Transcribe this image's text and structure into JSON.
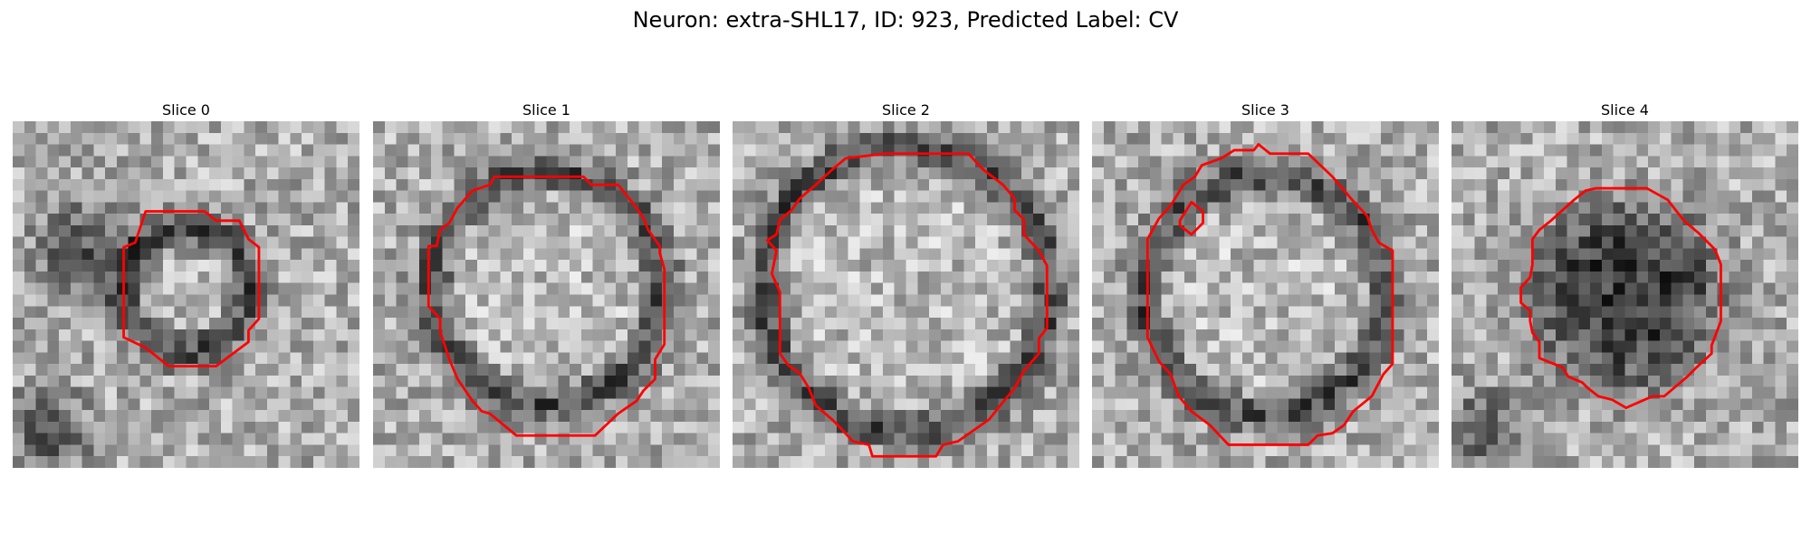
{
  "figure": {
    "title": "Neuron: extra-SHL17, ID: 923, Predicted Label: CV"
  },
  "colors": {
    "contour": "#ff0000",
    "background": "#ffffff"
  },
  "grid_size": 30,
  "panels": [
    {
      "title": "Slice 0",
      "blob": {
        "cx": 15.0,
        "cy": 14.5,
        "r": 5.4,
        "mode": "ring",
        "inner": "light"
      },
      "dark_patches": [
        [
          6,
          11,
          4
        ],
        [
          3,
          27,
          3.5
        ]
      ],
      "contour": [
        [
          11.5,
          7.8
        ],
        [
          13.2,
          7.8
        ],
        [
          14.6,
          7.8
        ],
        [
          16.6,
          7.8
        ],
        [
          17.6,
          8.6
        ],
        [
          19.6,
          8.6
        ],
        [
          20.4,
          10.2
        ],
        [
          21.3,
          10.9
        ],
        [
          21.3,
          17.1
        ],
        [
          20.4,
          18.1
        ],
        [
          20.4,
          19.1
        ],
        [
          17.6,
          21.2
        ],
        [
          13.5,
          21.2
        ],
        [
          11.5,
          19.6
        ],
        [
          9.6,
          18.7
        ],
        [
          9.6,
          10.9
        ],
        [
          10.6,
          10.5
        ]
      ]
    },
    {
      "title": "Slice 1",
      "blob": {
        "cx": 15.0,
        "cy": 14.5,
        "r": 10.0,
        "mode": "ring",
        "inner": "light"
      },
      "dark_patches": [],
      "contour": [
        [
          10.5,
          4.8
        ],
        [
          14.0,
          4.8
        ],
        [
          18.2,
          4.8
        ],
        [
          18.9,
          5.5
        ],
        [
          21.2,
          5.5
        ],
        [
          22.8,
          7.5
        ],
        [
          23.4,
          8.4
        ],
        [
          23.8,
          9.4
        ],
        [
          24.8,
          10.8
        ],
        [
          24.8,
          11.4
        ],
        [
          25.2,
          12.8
        ],
        [
          25.2,
          19.3
        ],
        [
          24.4,
          20.6
        ],
        [
          24.4,
          22.3
        ],
        [
          23.4,
          23.3
        ],
        [
          22.8,
          24.2
        ],
        [
          21.2,
          25.3
        ],
        [
          19.2,
          27.2
        ],
        [
          12.4,
          27.2
        ],
        [
          10.1,
          25.3
        ],
        [
          9.4,
          25.1
        ],
        [
          8.6,
          24.2
        ],
        [
          7.3,
          22.3
        ],
        [
          6.6,
          20.6
        ],
        [
          5.8,
          18.2
        ],
        [
          5.8,
          17.1
        ],
        [
          4.8,
          16.0
        ],
        [
          4.8,
          10.8
        ],
        [
          5.5,
          10.8
        ],
        [
          5.8,
          9.4
        ],
        [
          6.6,
          8.8
        ],
        [
          7.3,
          7.5
        ],
        [
          8.6,
          6.0
        ],
        [
          10.1,
          5.5
        ]
      ]
    },
    {
      "title": "Slice 2",
      "blob": {
        "cx": 15.0,
        "cy": 14.5,
        "r": 12.4,
        "mode": "ring",
        "inner": "light"
      },
      "dark_patches": [],
      "contour": [
        [
          9.8,
          3.2
        ],
        [
          13.2,
          2.8
        ],
        [
          17.6,
          2.8
        ],
        [
          20.4,
          2.8
        ],
        [
          21.7,
          4.2
        ],
        [
          23.4,
          5.5
        ],
        [
          24.4,
          6.7
        ],
        [
          24.4,
          7.7
        ],
        [
          25.2,
          8.5
        ],
        [
          25.2,
          9.8
        ],
        [
          26.5,
          11.2
        ],
        [
          27.2,
          12.5
        ],
        [
          27.2,
          17.9
        ],
        [
          26.5,
          18.8
        ],
        [
          26.5,
          20.1
        ],
        [
          25.2,
          21.6
        ],
        [
          24.4,
          23.1
        ],
        [
          23.4,
          24.3
        ],
        [
          22.2,
          25.8
        ],
        [
          19.5,
          27.7
        ],
        [
          18.2,
          28.0
        ],
        [
          17.6,
          29.0
        ],
        [
          12.1,
          29.0
        ],
        [
          11.8,
          28.0
        ],
        [
          10.4,
          27.7
        ],
        [
          9.3,
          26.5
        ],
        [
          8.6,
          25.8
        ],
        [
          7.2,
          24.6
        ],
        [
          6.6,
          23.1
        ],
        [
          5.8,
          21.8
        ],
        [
          4.8,
          21.1
        ],
        [
          4.1,
          20.1
        ],
        [
          4.1,
          14.8
        ],
        [
          3.4,
          13.2
        ],
        [
          3.8,
          11.2
        ],
        [
          3.0,
          10.3
        ],
        [
          3.8,
          9.8
        ],
        [
          4.1,
          8.5
        ],
        [
          5.1,
          7.7
        ],
        [
          5.8,
          6.7
        ],
        [
          7.2,
          5.5
        ],
        [
          8.6,
          4.2
        ]
      ]
    },
    {
      "title": "Slice 3",
      "blob": {
        "cx": 15.0,
        "cy": 15.0,
        "r": 10.4,
        "mode": "ring",
        "inner": "light"
      },
      "dark_patches": [],
      "contour": [
        [
          14.4,
          2.0
        ],
        [
          15.4,
          2.8
        ],
        [
          18.7,
          2.8
        ],
        [
          20.8,
          4.8
        ],
        [
          22.5,
          6.8
        ],
        [
          23.8,
          8.2
        ],
        [
          24.2,
          9.4
        ],
        [
          24.8,
          10.5
        ],
        [
          26.0,
          11.2
        ],
        [
          26.0,
          21.0
        ],
        [
          25.2,
          21.9
        ],
        [
          24.2,
          23.8
        ],
        [
          22.6,
          25.1
        ],
        [
          21.8,
          26.3
        ],
        [
          20.8,
          27.0
        ],
        [
          19.5,
          27.2
        ],
        [
          18.7,
          28.0
        ],
        [
          11.8,
          28.0
        ],
        [
          10.2,
          26.3
        ],
        [
          8.6,
          25.1
        ],
        [
          7.5,
          23.8
        ],
        [
          6.8,
          21.9
        ],
        [
          5.8,
          20.8
        ],
        [
          4.8,
          18.7
        ],
        [
          4.8,
          10.2
        ],
        [
          5.8,
          8.4
        ],
        [
          6.8,
          7.3
        ],
        [
          7.9,
          5.5
        ],
        [
          8.9,
          4.8
        ],
        [
          9.5,
          3.8
        ],
        [
          11.2,
          3.2
        ],
        [
          12.3,
          2.5
        ],
        [
          14.0,
          2.5
        ]
      ],
      "extra_contours": [
        [
          [
            7.6,
            8.6
          ],
          [
            8.6,
            7.0
          ],
          [
            9.6,
            7.8
          ],
          [
            9.6,
            8.8
          ],
          [
            8.6,
            9.8
          ],
          [
            7.6,
            9.0
          ]
        ]
      ]
    },
    {
      "title": "Slice 4",
      "blob": {
        "cx": 15.0,
        "cy": 15.0,
        "r": 8.4,
        "mode": "dark",
        "inner": "dark"
      },
      "dark_patches": [
        [
          3,
          27,
          3.5
        ]
      ],
      "contour": [
        [
          10.6,
          6.8
        ],
        [
          11.6,
          6.0
        ],
        [
          12.5,
          5.8
        ],
        [
          16.9,
          5.8
        ],
        [
          18.7,
          6.8
        ],
        [
          20.1,
          8.6
        ],
        [
          21.4,
          9.7
        ],
        [
          22.8,
          11.1
        ],
        [
          23.3,
          12.4
        ],
        [
          23.3,
          17.3
        ],
        [
          22.5,
          19.4
        ],
        [
          22.5,
          20.1
        ],
        [
          21.2,
          21.3
        ],
        [
          20.4,
          22.1
        ],
        [
          18.4,
          23.8
        ],
        [
          17.4,
          23.8
        ],
        [
          16.7,
          24.1
        ],
        [
          15.1,
          24.8
        ],
        [
          13.9,
          24.1
        ],
        [
          12.7,
          23.8
        ],
        [
          11.8,
          23.1
        ],
        [
          11.3,
          22.6
        ],
        [
          10.1,
          22.1
        ],
        [
          9.6,
          21.3
        ],
        [
          7.6,
          20.5
        ],
        [
          7.6,
          19.1
        ],
        [
          7.0,
          18.3
        ],
        [
          6.8,
          17.3
        ],
        [
          6.8,
          16.4
        ],
        [
          6.0,
          15.7
        ],
        [
          6.0,
          14.4
        ],
        [
          6.8,
          13.5
        ],
        [
          7.0,
          12.4
        ],
        [
          7.0,
          10.2
        ],
        [
          7.6,
          9.4
        ],
        [
          8.6,
          8.6
        ],
        [
          9.6,
          7.7
        ]
      ]
    }
  ]
}
